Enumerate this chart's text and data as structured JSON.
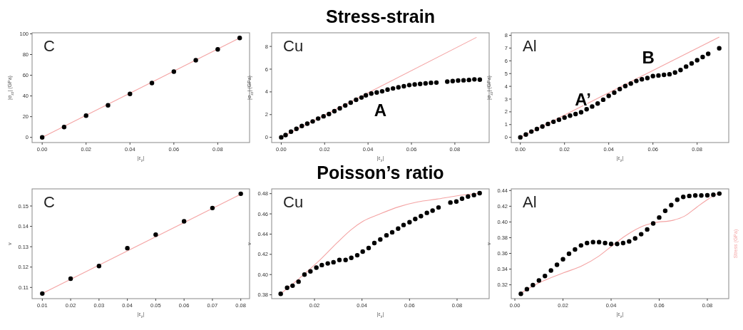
{
  "chart_data": [
    {
      "type": "scatter",
      "ylabel": "|σ$_{zz}$| (GPa)",
      "xlabel": "|ε$_{z}$|",
      "annotations": [
        "C"
      ],
      "xlim": [
        -0.0046,
        0.0945
      ],
      "ylim": [
        -5,
        101
      ],
      "xticks": [
        {
          "value": 0,
          "label": "0.00"
        },
        {
          "value": 0.02,
          "label": "0.02"
        },
        {
          "value": 0.04,
          "label": "0.04"
        },
        {
          "value": 0.06,
          "label": "0.06"
        },
        {
          "value": 0.08,
          "label": "0.08"
        }
      ],
      "yticks": [
        0,
        20,
        40,
        60,
        80,
        100
      ],
      "series": [
        {
          "type": "line",
          "color": "#f4a3a3",
          "x": [
            0,
            0.09
          ],
          "values": [
            0,
            96
          ]
        },
        {
          "marker": "circle",
          "color": "#000000",
          "x": [
            0,
            0.01,
            0.02,
            0.03,
            0.04,
            0.05,
            0.06,
            0.07,
            0.08,
            0.09
          ],
          "values": [
            0,
            10,
            21,
            31,
            42,
            52.5,
            63.5,
            74.5,
            85,
            96
          ]
        }
      ]
    },
    {
      "type": "scatter",
      "title": "Stress-strain",
      "ylabel": "|σ$_{zz}$| (GPa)",
      "xlabel": "|ε$_{z}$|",
      "annotations": [
        "Cu",
        "A"
      ],
      "xlim": [
        -0.0044,
        0.0958
      ],
      "ylim": [
        -0.46,
        9.2
      ],
      "xticks": [
        {
          "value": 0,
          "label": "0.00"
        },
        {
          "value": 0.02,
          "label": "0.02"
        },
        {
          "value": 0.04,
          "label": "0.04"
        },
        {
          "value": 0.06,
          "label": "0.06"
        },
        {
          "value": 0.08,
          "label": "0.08"
        }
      ],
      "yticks": [
        0,
        2,
        4,
        6,
        8
      ],
      "series": [
        {
          "type": "line",
          "color": "#f4a3a3",
          "x": [
            0,
            0.09
          ],
          "values": [
            0,
            8.8
          ]
        },
        {
          "marker": "circle",
          "color": "#000000",
          "x": [
            0,
            0.002,
            0.0045,
            0.007,
            0.0095,
            0.012,
            0.0145,
            0.017,
            0.0195,
            0.022,
            0.0245,
            0.027,
            0.0295,
            0.032,
            0.0345,
            0.037,
            0.039,
            0.0415,
            0.044,
            0.0465,
            0.049,
            0.0515,
            0.054,
            0.0565,
            0.059,
            0.0615,
            0.064,
            0.0665,
            0.069,
            0.0715,
            0.0765,
            0.079,
            0.0815,
            0.084,
            0.0865,
            0.089,
            0.0915
          ],
          "values": [
            0,
            0.2,
            0.5,
            0.75,
            1.0,
            1.2,
            1.4,
            1.65,
            1.85,
            2.05,
            2.3,
            2.55,
            2.8,
            3.05,
            3.3,
            3.5,
            3.7,
            3.85,
            3.95,
            4.05,
            4.2,
            4.3,
            4.4,
            4.5,
            4.6,
            4.65,
            4.7,
            4.75,
            4.8,
            4.82,
            4.9,
            4.95,
            5.0,
            5.02,
            5.05,
            5.1,
            5.08
          ]
        }
      ]
    },
    {
      "type": "scatter",
      "ylabel": "|σ$_{zz}$| (GPa)",
      "xlabel": "|ε$_{z}$|",
      "annotations": [
        "Al",
        "A’",
        "B"
      ],
      "xlim": [
        -0.0041,
        0.0943
      ],
      "ylim": [
        -0.41,
        8.2
      ],
      "xticks": [
        {
          "value": 0,
          "label": "0.00"
        },
        {
          "value": 0.02,
          "label": "0.02"
        },
        {
          "value": 0.04,
          "label": "0.04"
        },
        {
          "value": 0.06,
          "label": "0.06"
        },
        {
          "value": 0.08,
          "label": "0.08"
        }
      ],
      "yticks": [
        0,
        1,
        2,
        3,
        4,
        5,
        6,
        7,
        8
      ],
      "series": [
        {
          "type": "line",
          "color": "#f4a3a3",
          "x": [
            0,
            0.09
          ],
          "values": [
            0,
            7.87
          ]
        },
        {
          "marker": "circle",
          "color": "#000000",
          "x": [
            0,
            0.0025,
            0.005,
            0.0075,
            0.01,
            0.0125,
            0.015,
            0.0175,
            0.02,
            0.0225,
            0.025,
            0.0275,
            0.03,
            0.0325,
            0.035,
            0.0375,
            0.04,
            0.0425,
            0.045,
            0.0475,
            0.05,
            0.0525,
            0.055,
            0.0575,
            0.06,
            0.0625,
            0.065,
            0.0675,
            0.07,
            0.0725,
            0.075,
            0.0775,
            0.08,
            0.0825,
            0.085,
            0.09
          ],
          "values": [
            0,
            0.22,
            0.45,
            0.65,
            0.85,
            1.05,
            1.22,
            1.38,
            1.55,
            1.7,
            1.83,
            1.97,
            2.2,
            2.42,
            2.65,
            2.95,
            3.25,
            3.5,
            3.78,
            4.02,
            4.22,
            4.42,
            4.55,
            4.65,
            4.8,
            4.85,
            4.9,
            4.95,
            5.08,
            5.28,
            5.55,
            5.8,
            6.05,
            6.3,
            6.55,
            6.98
          ]
        }
      ]
    },
    {
      "type": "scatter",
      "ylabel": "ν",
      "xlabel": "|ε$_{z}$|",
      "annotations": [
        "C"
      ],
      "xlim": [
        0.0064,
        0.0831
      ],
      "ylim": [
        0.1045,
        0.1584
      ],
      "xticks": [
        0.01,
        0.02,
        0.03,
        0.04,
        0.05,
        0.06,
        0.07,
        0.08
      ],
      "yticks": [
        0.11,
        0.12,
        0.13,
        0.14,
        0.15
      ],
      "series": [
        {
          "type": "line",
          "color": "#f4a3a3",
          "x": [
            0.01,
            0.08
          ],
          "values": [
            0.107,
            0.1558
          ]
        },
        {
          "marker": "circle",
          "color": "#000000",
          "x": [
            0.01,
            0.02,
            0.03,
            0.04,
            0.05,
            0.06,
            0.07,
            0.08
          ],
          "values": [
            0.107,
            0.1143,
            0.1205,
            0.1293,
            0.1359,
            0.1425,
            0.149,
            0.156
          ]
        }
      ]
    },
    {
      "type": "scatter",
      "title": "Poisson’s ratio",
      "ylabel": "ν",
      "xlabel": "|ε$_{z}$|",
      "annotations": [
        "Cu"
      ],
      "xlim": [
        0.002,
        0.0935
      ],
      "ylim": [
        0.3762,
        0.4847
      ],
      "xticks": [
        0.02,
        0.04,
        0.06,
        0.08
      ],
      "yticks": [
        0.38,
        {
          "value": 0.4,
          "label": "0.40"
        },
        0.42,
        0.44,
        0.46,
        0.48
      ],
      "series": [
        {
          "type": "line",
          "color": "#f4a3a3",
          "x": [
            0.0058,
            0.0158,
            0.0225,
            0.0295,
            0.0355,
            0.0405,
            0.0475,
            0.0555,
            0.0635,
            0.0715,
            0.0795,
            0.0895
          ],
          "values": [
            0.381,
            0.4006,
            0.4148,
            0.4314,
            0.4445,
            0.4528,
            0.4599,
            0.467,
            0.4718,
            0.4746,
            0.4777,
            0.4805
          ]
        },
        {
          "marker": "circle",
          "color": "#000000",
          "x": [
            0.0058,
            0.0085,
            0.0108,
            0.0133,
            0.0158,
            0.0183,
            0.0208,
            0.0231,
            0.0256,
            0.028,
            0.0305,
            0.0331,
            0.0355,
            0.038,
            0.0403,
            0.0428,
            0.0452,
            0.0477,
            0.0503,
            0.0527,
            0.0552,
            0.0575,
            0.06,
            0.0624,
            0.0648,
            0.0673,
            0.0697,
            0.0722,
            0.0772,
            0.0797,
            0.0821,
            0.0846,
            0.0871,
            0.0895
          ],
          "values": [
            0.381,
            0.3869,
            0.389,
            0.393,
            0.4,
            0.4032,
            0.4068,
            0.4094,
            0.411,
            0.4122,
            0.4144,
            0.4144,
            0.4165,
            0.4191,
            0.4227,
            0.4262,
            0.4312,
            0.4347,
            0.4388,
            0.4418,
            0.4454,
            0.449,
            0.4518,
            0.4549,
            0.4577,
            0.461,
            0.4632,
            0.4663,
            0.4712,
            0.4722,
            0.475,
            0.4771,
            0.4786,
            0.4805
          ]
        }
      ]
    },
    {
      "type": "scatter",
      "ylabel": "ν",
      "xlabel": "|ε$_{z}$|",
      "y2label": "Stress (GPa)",
      "annotations": [
        "Al"
      ],
      "xlim": [
        -0.0015,
        0.0889
      ],
      "ylim": [
        0.3024,
        0.4421
      ],
      "xticks": [
        {
          "value": 0,
          "label": "0.00"
        },
        0.02,
        0.04,
        0.06,
        0.08
      ],
      "yticks": [
        0.32,
        0.34,
        0.36,
        0.38,
        {
          "value": 0.4,
          "label": "0.40"
        },
        0.42,
        0.44
      ],
      "series": [
        {
          "type": "line",
          "color": "#f4a3a3",
          "x": [
            0.0025,
            0.0104,
            0.0202,
            0.028,
            0.0349,
            0.04,
            0.0459,
            0.0519,
            0.0578,
            0.0657,
            0.0706,
            0.0756,
            0.0805,
            0.0844
          ],
          "values": [
            0.3094,
            0.323,
            0.3352,
            0.3443,
            0.3565,
            0.3686,
            0.3823,
            0.393,
            0.399,
            0.4021,
            0.4075,
            0.4188,
            0.4294,
            0.4361
          ]
        },
        {
          "marker": "circle",
          "color": "#000000",
          "x": [
            0.0025,
            0.005,
            0.0075,
            0.01,
            0.0125,
            0.015,
            0.0175,
            0.02,
            0.0225,
            0.025,
            0.0275,
            0.03,
            0.0325,
            0.035,
            0.0375,
            0.04,
            0.0425,
            0.045,
            0.0475,
            0.05,
            0.0525,
            0.055,
            0.0575,
            0.06,
            0.0625,
            0.065,
            0.0675,
            0.07,
            0.0725,
            0.075,
            0.0775,
            0.08,
            0.0825,
            0.085
          ],
          "values": [
            0.3085,
            0.3145,
            0.3197,
            0.3255,
            0.3312,
            0.3382,
            0.3455,
            0.3525,
            0.3595,
            0.365,
            0.3701,
            0.3732,
            0.3744,
            0.3744,
            0.3732,
            0.372,
            0.372,
            0.3732,
            0.3753,
            0.379,
            0.3844,
            0.3905,
            0.3981,
            0.4057,
            0.4142,
            0.4215,
            0.4282,
            0.4319,
            0.4331,
            0.4337,
            0.4337,
            0.434,
            0.4346,
            0.4361
          ]
        }
      ]
    }
  ]
}
